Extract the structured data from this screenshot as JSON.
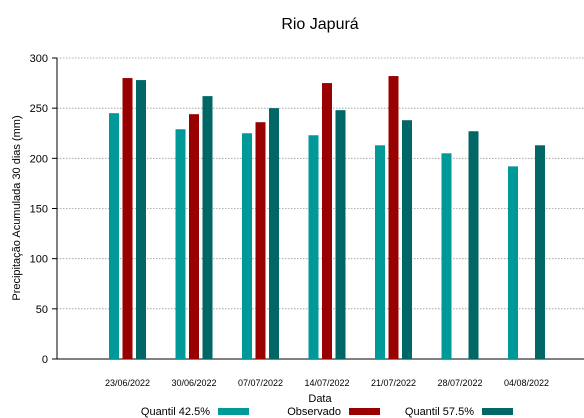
{
  "chart_data": {
    "type": "bar",
    "title": "Rio Japurá",
    "xlabel": "Data",
    "ylabel": "Precipitação Acumulada 30 dias (mm)",
    "categories": [
      "23/06/2022",
      "30/06/2022",
      "07/07/2022",
      "14/07/2022",
      "21/07/2022",
      "28/07/2022",
      "04/08/2022"
    ],
    "ylim": [
      0,
      300
    ],
    "yticks": [
      0,
      50,
      100,
      150,
      200,
      250,
      300
    ],
    "grid": true,
    "legend_position": "bottom",
    "series": [
      {
        "name": "Quantil 42.5%",
        "color": "#009999",
        "values": [
          245,
          229,
          225,
          223,
          213,
          205,
          192
        ]
      },
      {
        "name": "Observado",
        "color": "#990000",
        "values": [
          280,
          244,
          236,
          275,
          282,
          null,
          null
        ]
      },
      {
        "name": "Quantil 57.5%",
        "color": "#006666",
        "values": [
          278,
          262,
          250,
          248,
          238,
          227,
          213
        ]
      }
    ]
  }
}
